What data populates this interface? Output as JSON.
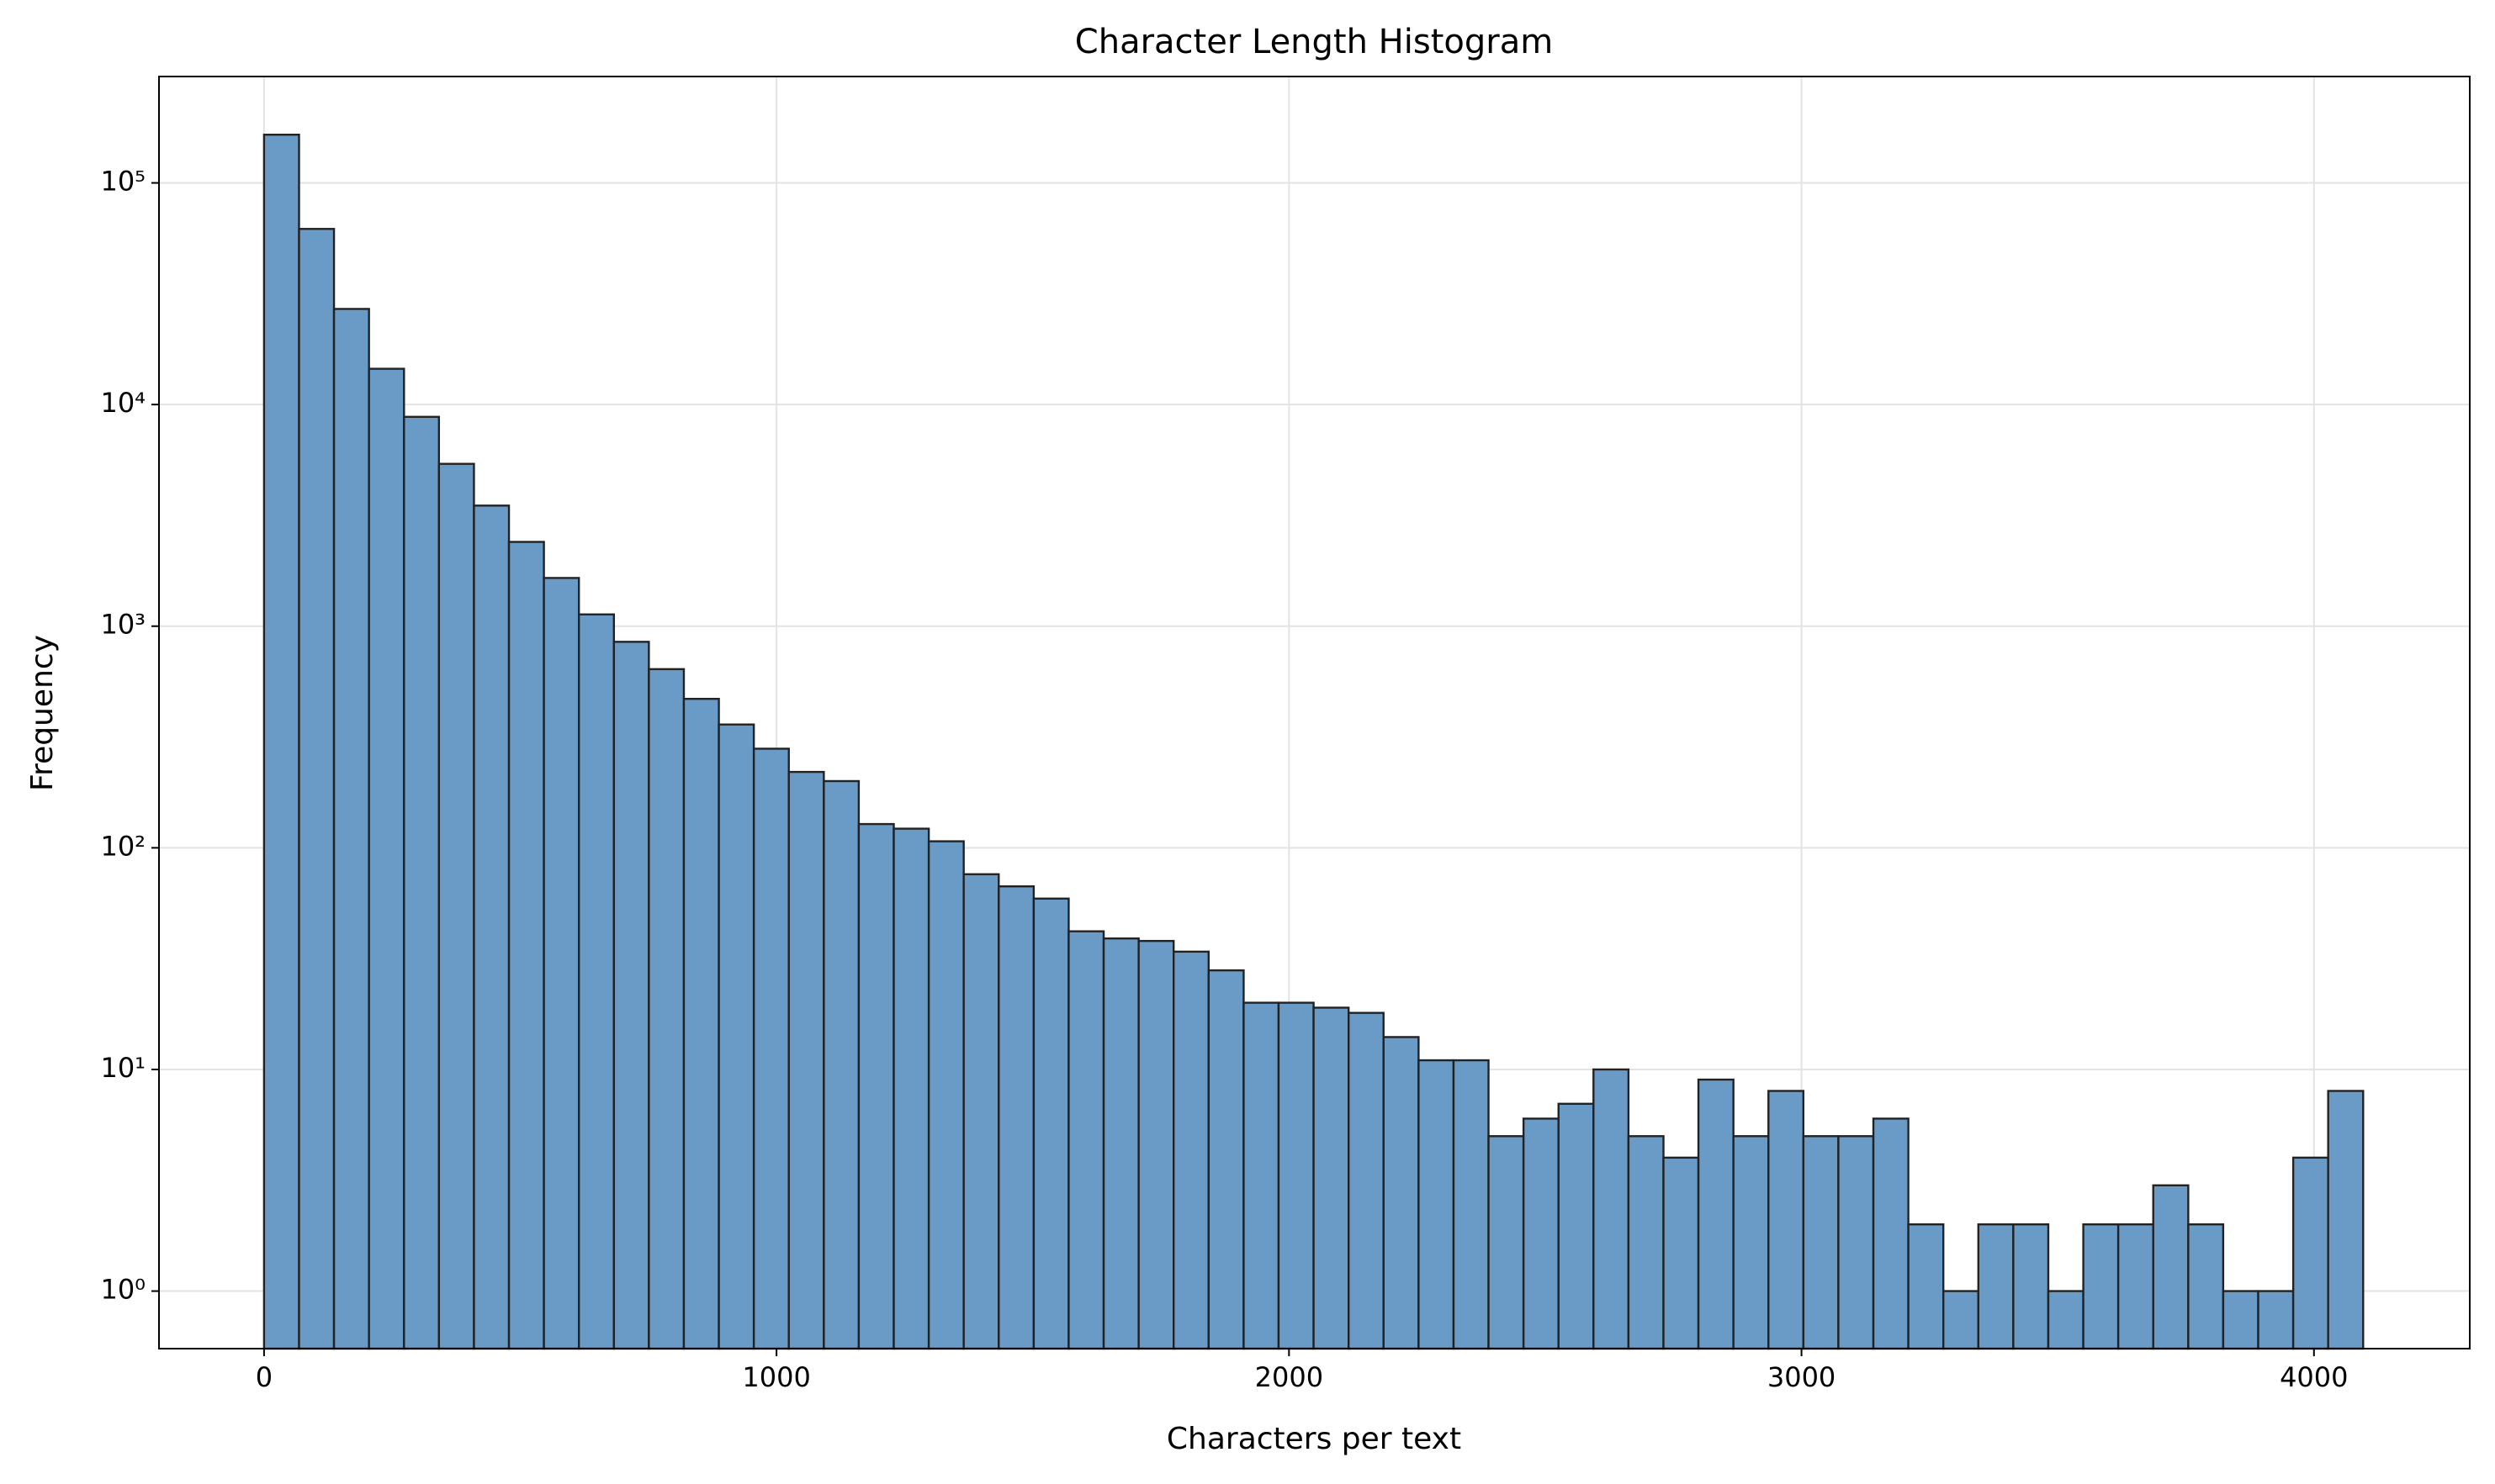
{
  "chart_data": {
    "type": "histogram",
    "title": "Character Length Histogram",
    "x_label": "Characters per text",
    "y_label": "Frequency",
    "bins": [
      0,
      68.3,
      136.5,
      204.8,
      273.1,
      341.3,
      409.6,
      477.9,
      546.1,
      614.4,
      682.7,
      750.9,
      819.2,
      887.5,
      955.7,
      1024,
      1092.3,
      1160.5,
      1228.8,
      1297.1,
      1365.3,
      1433.6,
      1501.9,
      1570.1,
      1638.4,
      1706.7,
      1774.9,
      1843.2,
      1911.5,
      1979.7,
      2048,
      2116.3,
      2184.5,
      2252.8,
      2321.1,
      2389.3,
      2457.6,
      2525.9,
      2594.1,
      2662.4,
      2730.7,
      2798.9,
      2867.2,
      2935.5,
      3003.7,
      3072,
      3140.3,
      3208.5,
      3276.8,
      3345.1,
      3413.3,
      3481.6,
      3549.9,
      3618.1,
      3686.4,
      3754.7,
      3822.9,
      3891.2,
      3959.5,
      4027.7,
      4096
    ],
    "values": [
      165000,
      62000,
      27000,
      14500,
      8800,
      5400,
      3500,
      2400,
      1650,
      1130,
      850,
      640,
      470,
      360,
      280,
      220,
      200,
      128,
      122,
      107,
      76,
      67,
      59,
      42,
      39,
      38,
      34,
      28,
      20,
      20,
      19,
      18,
      14,
      11,
      11,
      5,
      6,
      7,
      10,
      5,
      4,
      9,
      5,
      8,
      5,
      5,
      6,
      2,
      1,
      2,
      2,
      1,
      2,
      2,
      3,
      2,
      1,
      1,
      4,
      8
    ],
    "color": "#6a9bc6",
    "edge_color": "#222222",
    "xlim": [
      -205,
      4304
    ],
    "xticks": [
      0,
      1000,
      2000,
      3000,
      4000
    ],
    "ylim": [
      0.55,
      302000
    ],
    "y_scale": "log",
    "yticks": [
      {
        "value": 1,
        "label": "10⁰"
      },
      {
        "value": 10,
        "label": "10¹"
      },
      {
        "value": 100,
        "label": "10²"
      },
      {
        "value": 1000,
        "label": "10³"
      },
      {
        "value": 10000,
        "label": "10⁴"
      },
      {
        "value": 100000,
        "label": "10⁵"
      }
    ],
    "grid": true
  }
}
